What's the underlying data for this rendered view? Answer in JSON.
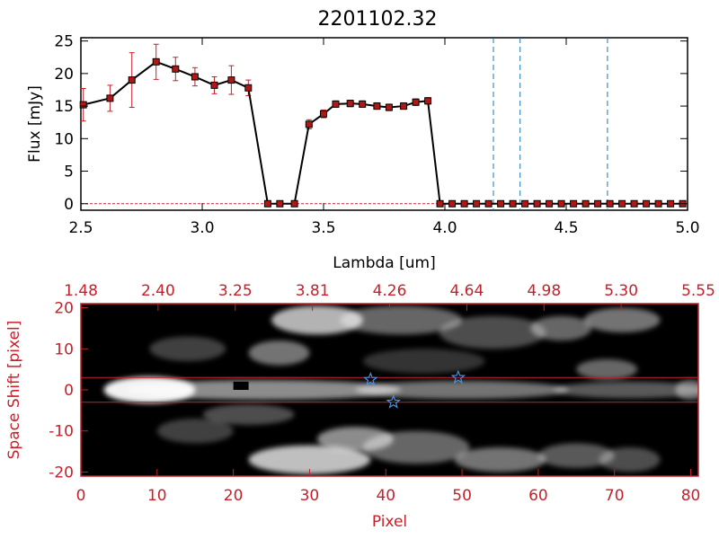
{
  "title": "2201102.32",
  "colors": {
    "red": "#c8202a",
    "marker": "#b01818",
    "line": "#000000",
    "vline": "#1f77b4",
    "star": "#4a90e2",
    "white": "#ffffff"
  },
  "chart_data": [
    {
      "type": "line",
      "title": "2201102.32",
      "xlabel": "Lambda [um]",
      "ylabel": "Flux [mJy]",
      "xlim": [
        2.5,
        5.0
      ],
      "ylim": [
        -1,
        25.5
      ],
      "xticks": [
        "2.5",
        "3.0",
        "3.5",
        "4.0",
        "4.5",
        "5.0"
      ],
      "yticks": [
        "0",
        "5",
        "10",
        "15",
        "20",
        "25"
      ],
      "x": [
        2.51,
        2.62,
        2.71,
        2.81,
        2.89,
        2.97,
        3.05,
        3.12,
        3.19,
        3.27,
        3.32,
        3.38,
        3.44,
        3.5,
        3.55,
        3.61,
        3.66,
        3.72,
        3.77,
        3.83,
        3.88,
        3.93,
        3.98,
        4.03,
        4.08,
        4.13,
        4.18,
        4.23,
        4.28,
        4.33,
        4.38,
        4.43,
        4.48,
        4.53,
        4.58,
        4.63,
        4.68,
        4.73,
        4.78,
        4.83,
        4.88,
        4.93,
        4.98
      ],
      "y": [
        15.2,
        16.2,
        19.0,
        21.8,
        20.7,
        19.5,
        18.2,
        19.0,
        17.8,
        0,
        0,
        0,
        12.2,
        13.8,
        15.3,
        15.4,
        15.3,
        15.0,
        14.8,
        15.0,
        15.6,
        15.8,
        0,
        0,
        0,
        0,
        0,
        0,
        0,
        0,
        0,
        0,
        0,
        0,
        0,
        0,
        0,
        0,
        0,
        0,
        0,
        0,
        0
      ],
      "yerr": [
        2.5,
        2.0,
        4.2,
        2.7,
        1.8,
        1.4,
        1.3,
        2.2,
        1.2,
        0,
        0,
        0,
        0.7,
        0.6,
        0.5,
        0.5,
        0.5,
        0.5,
        0.5,
        0.5,
        0.5,
        0.5,
        0,
        0,
        0,
        0,
        0,
        0,
        0,
        0,
        0,
        0,
        0,
        0,
        0,
        0,
        0,
        0,
        0,
        0,
        0,
        0,
        0
      ],
      "vlines": [
        4.2,
        4.31,
        4.67
      ],
      "grid": false
    },
    {
      "type": "heatmap",
      "xlabel": "Pixel",
      "ylabel": "Space Shift [pixel]",
      "xlim": [
        0,
        81
      ],
      "ylim": [
        -21,
        21
      ],
      "xticks": [
        "0",
        "10",
        "20",
        "30",
        "40",
        "50",
        "60",
        "70",
        "80"
      ],
      "yticks": [
        "-20",
        "-10",
        "0",
        "10",
        "20"
      ],
      "top_ticks": [
        "1.48",
        "2.40",
        "3.25",
        "3.81",
        "4.26",
        "4.64",
        "4.98",
        "5.30",
        "5.55"
      ],
      "hlines": [
        3,
        -3
      ],
      "stars": [
        {
          "x": 38,
          "y": 2.5
        },
        {
          "x": 41,
          "y": -3
        },
        {
          "x": 49.5,
          "y": 3
        }
      ],
      "blobs": [
        {
          "x": 9,
          "y": 0,
          "sx": 6,
          "sy": 3.2,
          "a": 0.95
        },
        {
          "x": 24,
          "y": 0,
          "sx": 18,
          "sy": 2.4,
          "a": 0.55
        },
        {
          "x": 50,
          "y": 0,
          "sx": 14,
          "sy": 2.2,
          "a": 0.45
        },
        {
          "x": 72,
          "y": 0,
          "sx": 10,
          "sy": 2.0,
          "a": 0.35
        },
        {
          "x": 80,
          "y": 0,
          "sx": 2,
          "sy": 2.5,
          "a": 0.4
        },
        {
          "x": 31,
          "y": 17,
          "sx": 6,
          "sy": 3.5,
          "a": 0.7
        },
        {
          "x": 42,
          "y": 17,
          "sx": 8,
          "sy": 3.5,
          "a": 0.4
        },
        {
          "x": 26,
          "y": 9,
          "sx": 4,
          "sy": 3,
          "a": 0.45
        },
        {
          "x": 54,
          "y": 14,
          "sx": 7,
          "sy": 4,
          "a": 0.3
        },
        {
          "x": 63,
          "y": 15,
          "sx": 4,
          "sy": 3,
          "a": 0.4
        },
        {
          "x": 71,
          "y": 17,
          "sx": 5,
          "sy": 3,
          "a": 0.45
        },
        {
          "x": 69,
          "y": 5,
          "sx": 4,
          "sy": 2.5,
          "a": 0.4
        },
        {
          "x": 14,
          "y": 10,
          "sx": 5,
          "sy": 3,
          "a": 0.25
        },
        {
          "x": 30,
          "y": -17,
          "sx": 8,
          "sy": 3.5,
          "a": 0.75
        },
        {
          "x": 36,
          "y": -12,
          "sx": 5,
          "sy": 3,
          "a": 0.55
        },
        {
          "x": 44,
          "y": -14,
          "sx": 7,
          "sy": 4,
          "a": 0.4
        },
        {
          "x": 55,
          "y": -17,
          "sx": 6,
          "sy": 3,
          "a": 0.45
        },
        {
          "x": 65,
          "y": -16,
          "sx": 5,
          "sy": 3,
          "a": 0.35
        },
        {
          "x": 72,
          "y": -17,
          "sx": 4,
          "sy": 3,
          "a": 0.3
        },
        {
          "x": 15,
          "y": -10,
          "sx": 5,
          "sy": 3,
          "a": 0.25
        },
        {
          "x": 22,
          "y": -6,
          "sx": 6,
          "sy": 2.5,
          "a": 0.3
        },
        {
          "x": 45,
          "y": 7,
          "sx": 8,
          "sy": 3,
          "a": 0.2
        }
      ],
      "dark_cells": [
        {
          "x": 20.0,
          "y": 1.0,
          "w": 2.0,
          "h": 2.0
        }
      ]
    }
  ]
}
